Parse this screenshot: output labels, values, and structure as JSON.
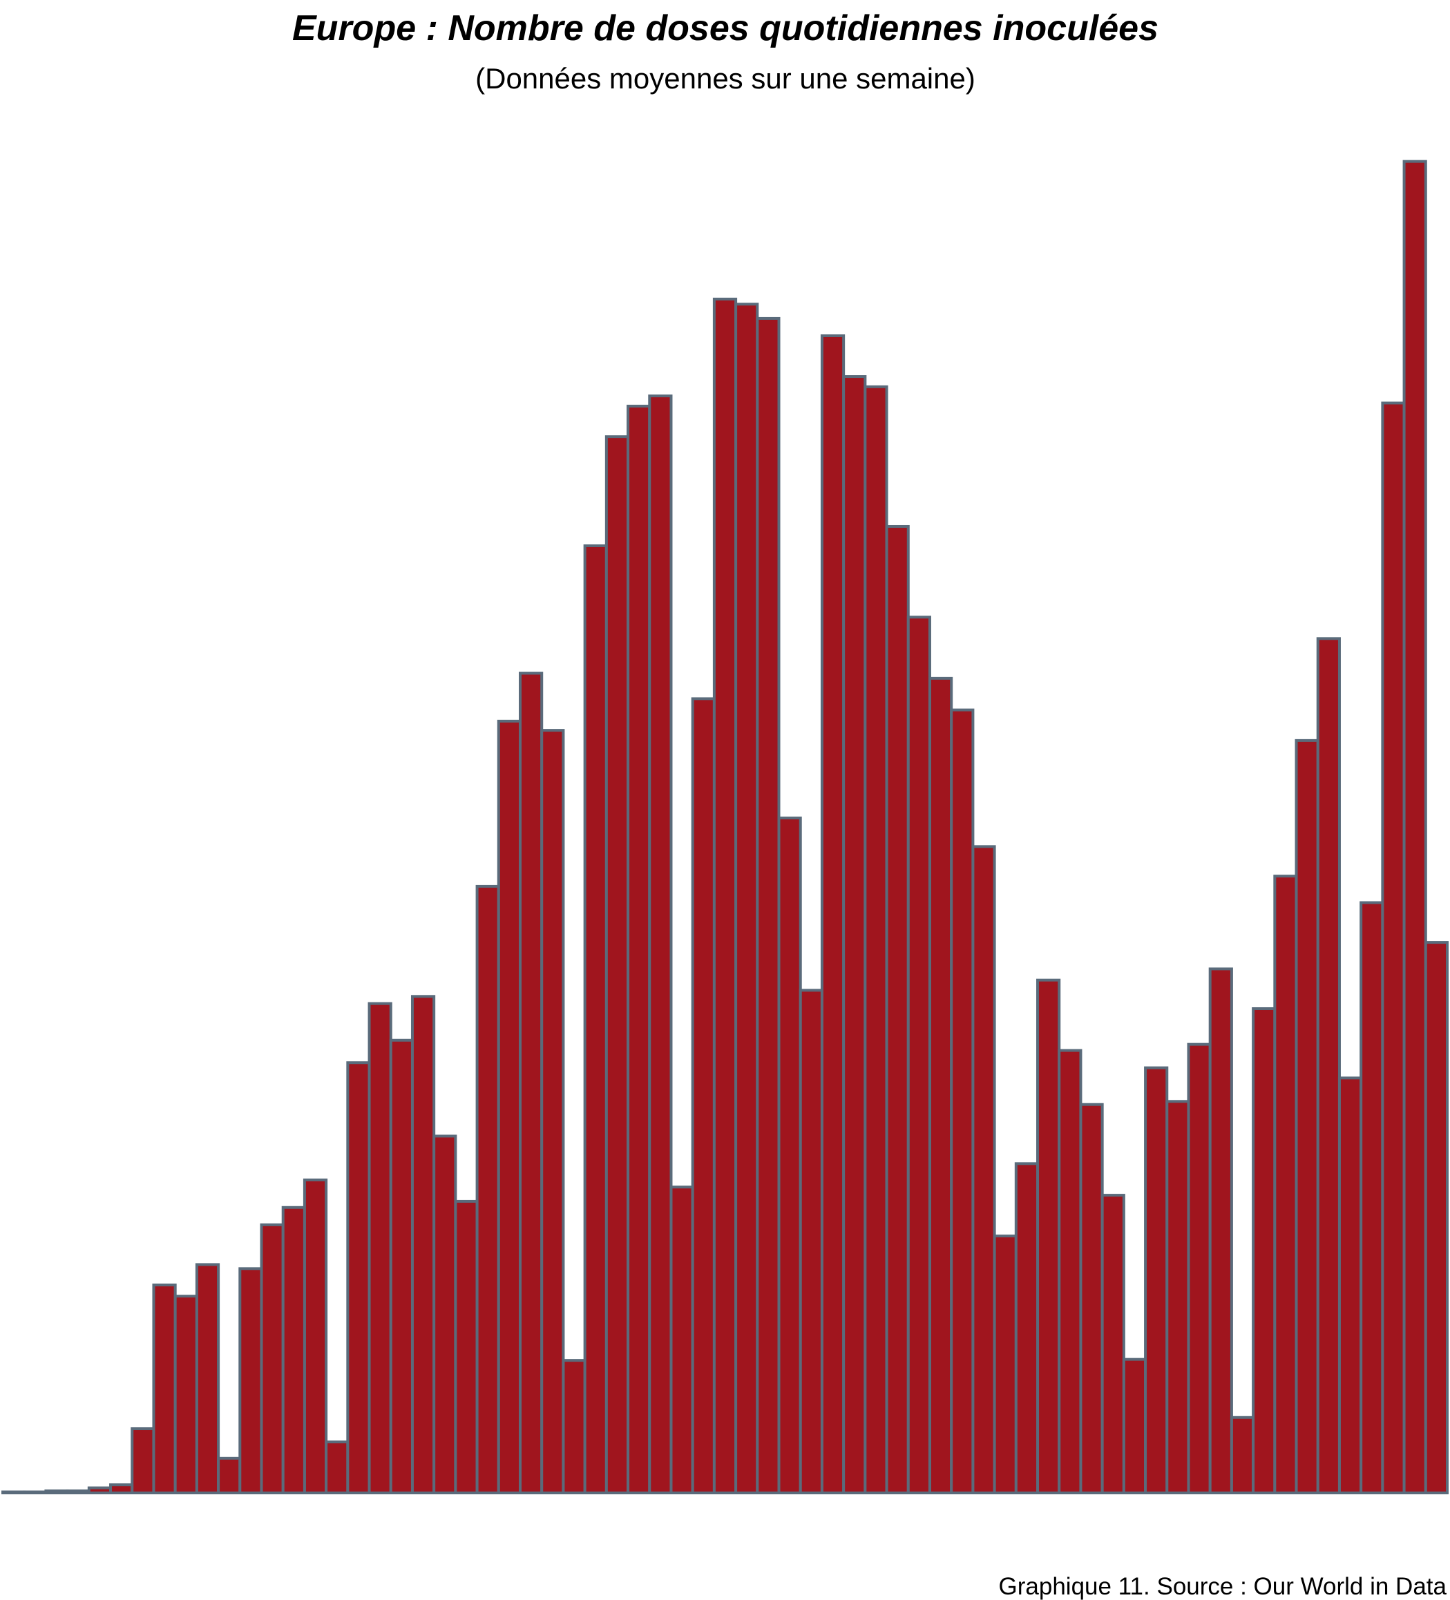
{
  "chart_data": {
    "type": "bar",
    "title": "Europe : Nombre de doses quotidiennes inoculées",
    "subtitle": "(Données moyennes sur une semaine)",
    "caption": "Graphique 11. Source : Our World in Data",
    "values": [
      1,
      1,
      2,
      2,
      5,
      8,
      63,
      204,
      193,
      224,
      34,
      220,
      263,
      280,
      307,
      50,
      422,
      480,
      444,
      487,
      350,
      286,
      595,
      757,
      804,
      748,
      130,
      929,
      1036,
      1066,
      1076,
      300,
      779,
      1171,
      1166,
      1152,
      662,
      493,
      1135,
      1095,
      1085,
      948,
      859,
      799,
      768,
      634,
      252,
      323,
      503,
      434,
      381,
      292,
      131,
      417,
      384,
      440,
      514,
      74,
      475,
      605,
      738,
      838,
      407,
      579,
      1069,
      1306,
      540
    ],
    "color": "#a0151e",
    "edge_color": "#5a6b7b",
    "ylim": [
      0,
      1320
    ]
  }
}
